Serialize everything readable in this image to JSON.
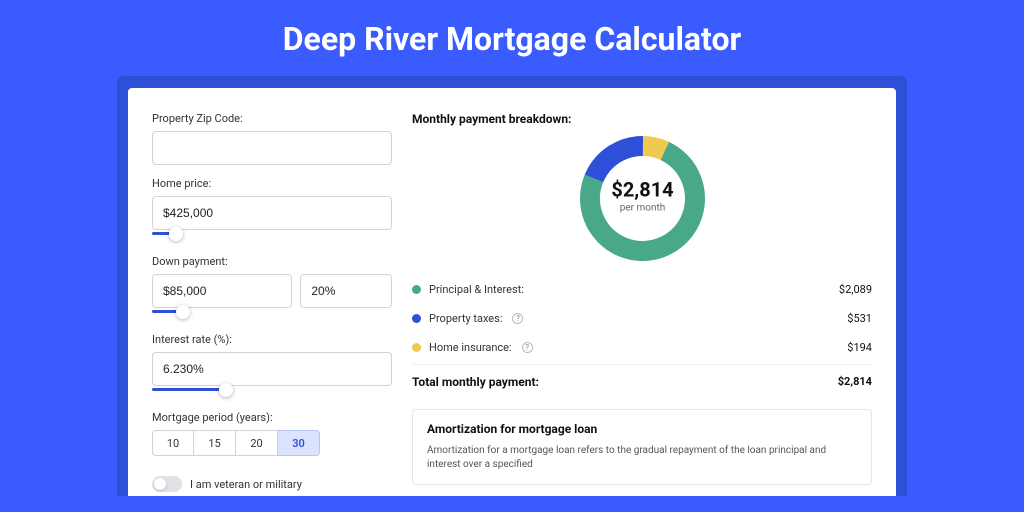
{
  "page": {
    "title": "Deep River Mortgage Calculator",
    "bg_color": "#3a5cff",
    "shadow_color": "#2e4fd8",
    "card_color": "#ffffff"
  },
  "form": {
    "zip_label": "Property Zip Code:",
    "zip_value": "",
    "home_price_label": "Home price:",
    "home_price_value": "$425,000",
    "home_price_slider": {
      "fill_pct": 10,
      "color": "#2e4fd8"
    },
    "down_payment_label": "Down payment:",
    "down_payment_value": "$85,000",
    "down_payment_pct_value": "20%",
    "down_payment_slider": {
      "fill_pct": 20,
      "color": "#2e4fd8"
    },
    "interest_label": "Interest rate (%):",
    "interest_value": "6.230%",
    "interest_slider": {
      "fill_pct": 31,
      "color": "#2e4fd8"
    },
    "period_label": "Mortgage period (years):",
    "period_options": [
      "10",
      "15",
      "20",
      "30"
    ],
    "period_selected_index": 3,
    "veteran_label": "I am veteran or military"
  },
  "breakdown": {
    "title": "Monthly payment breakdown:",
    "donut": {
      "size": 125,
      "thickness": 20,
      "center_amount": "$2,814",
      "center_sub": "per month",
      "slices": [
        {
          "name": "principal_interest",
          "value": 2089,
          "pct": 74.2,
          "color": "#4aa88a"
        },
        {
          "name": "property_taxes",
          "value": 531,
          "pct": 18.9,
          "color": "#2e4fd8"
        },
        {
          "name": "home_insurance",
          "value": 194,
          "pct": 6.9,
          "color": "#f0c94f"
        }
      ]
    },
    "legend": [
      {
        "label": "Principal & Interest:",
        "amount": "$2,089",
        "color": "#4aa88a",
        "info": false
      },
      {
        "label": "Property taxes:",
        "amount": "$531",
        "color": "#2e4fd8",
        "info": true
      },
      {
        "label": "Home insurance:",
        "amount": "$194",
        "color": "#f0c94f",
        "info": true
      }
    ],
    "total_label": "Total monthly payment:",
    "total_amount": "$2,814"
  },
  "amortization": {
    "title": "Amortization for mortgage loan",
    "text": "Amortization for a mortgage loan refers to the gradual repayment of the loan principal and interest over a specified"
  }
}
